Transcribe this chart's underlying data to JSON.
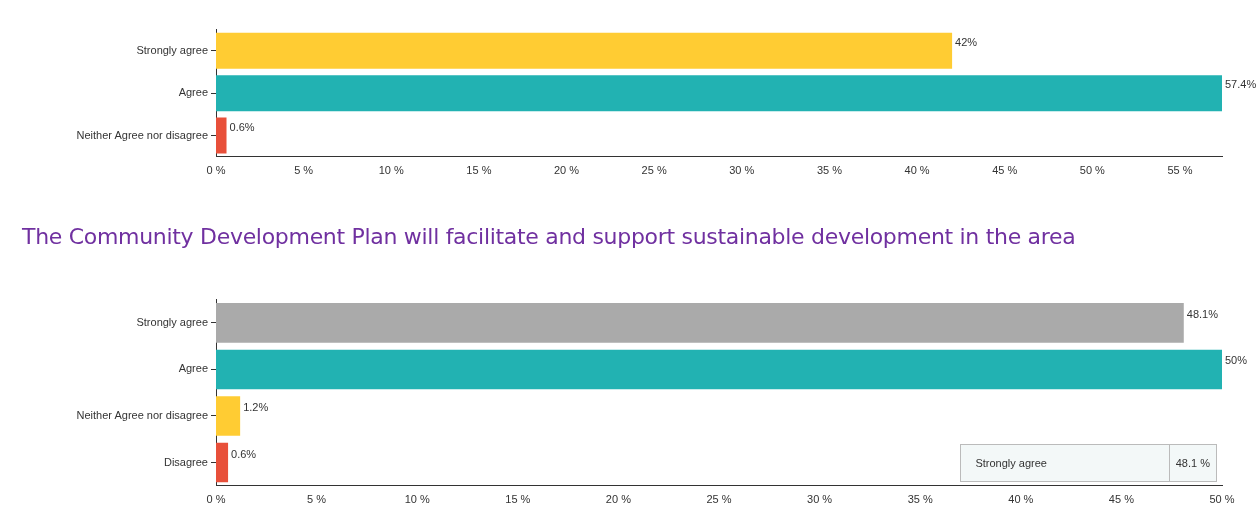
{
  "chart_data": [
    {
      "type": "bar",
      "orientation": "horizontal",
      "categories": [
        "Strongly agree",
        "Agree",
        "Neither Agree nor disagree"
      ],
      "values": [
        42,
        57.4,
        0.6
      ],
      "colors": [
        "#ffcc33",
        "#22b2b2",
        "#e8503a"
      ],
      "value_labels": [
        "42%",
        "57.4%",
        "0.6%"
      ],
      "xlim": [
        0,
        57.4
      ],
      "xticks": [
        {
          "value": 0,
          "label": "0 %"
        },
        {
          "value": 5,
          "label": "5 %"
        },
        {
          "value": 10,
          "label": "10 %"
        },
        {
          "value": 15,
          "label": "15 %"
        },
        {
          "value": 20,
          "label": "20 %"
        },
        {
          "value": 25,
          "label": "25 %"
        },
        {
          "value": 30,
          "label": "30 %"
        },
        {
          "value": 35,
          "label": "35 %"
        },
        {
          "value": 40,
          "label": "40 %"
        },
        {
          "value": 45,
          "label": "45 %"
        },
        {
          "value": 50,
          "label": "50 %"
        },
        {
          "value": 55,
          "label": "55 %"
        }
      ],
      "grid": false,
      "legend": false
    },
    {
      "type": "bar",
      "orientation": "horizontal",
      "title": "The Community Development Plan will facilitate and support sustainable development in the area",
      "categories": [
        "Strongly agree",
        "Agree",
        "Neither Agree nor disagree",
        "Disagree"
      ],
      "values": [
        48.1,
        50,
        1.2,
        0.6
      ],
      "colors": [
        "#aaaaaa",
        "#22b2b2",
        "#ffcc33",
        "#e8503a"
      ],
      "value_labels": [
        "48.1%",
        "50%",
        "1.2%",
        "0.6%"
      ],
      "xlim": [
        0,
        50
      ],
      "xticks": [
        {
          "value": 0,
          "label": "0 %"
        },
        {
          "value": 5,
          "label": "5 %"
        },
        {
          "value": 10,
          "label": "10 %"
        },
        {
          "value": 15,
          "label": "15 %"
        },
        {
          "value": 20,
          "label": "20 %"
        },
        {
          "value": 25,
          "label": "25 %"
        },
        {
          "value": 30,
          "label": "30 %"
        },
        {
          "value": 35,
          "label": "35 %"
        },
        {
          "value": 40,
          "label": "40 %"
        },
        {
          "value": 45,
          "label": "45 %"
        },
        {
          "value": 50,
          "label": "50 %"
        }
      ],
      "annotations": [
        "Strongly agree",
        "48.1 %"
      ],
      "grid": false,
      "legend": false
    }
  ]
}
